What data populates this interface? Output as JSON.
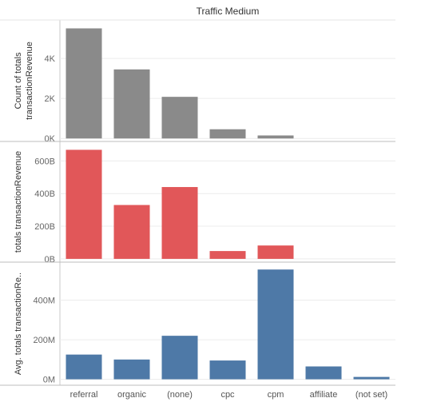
{
  "chart_data": {
    "type": "bar",
    "title": "Traffic Medium",
    "categories": [
      "referral",
      "organic",
      "(none)",
      "cpc",
      "cpm",
      "affiliate",
      "(not set)"
    ],
    "panels": [
      {
        "ylabel_lines": [
          "Count of totals",
          "transactionRevenue"
        ],
        "ticks": [
          0,
          2000,
          4000
        ],
        "tick_labels": [
          "0K",
          "2K",
          "4K"
        ],
        "ylim": [
          -150,
          5600
        ],
        "values": [
          5500,
          3450,
          2080,
          460,
          150,
          null,
          null
        ]
      },
      {
        "ylabel_lines": [
          "totals transactionRevenue"
        ],
        "ticks": [
          0,
          200,
          400,
          600
        ],
        "tick_labels": [
          "0B",
          "200B",
          "400B",
          "600B"
        ],
        "ylim": [
          -20,
          680
        ],
        "values": [
          668,
          330,
          440,
          48,
          82,
          null,
          null
        ]
      },
      {
        "ylabel_lines": [
          "Avg. totals transactionRe.."
        ],
        "ticks": [
          0,
          200,
          400
        ],
        "tick_labels": [
          "0M",
          "200M",
          "400M"
        ],
        "ylim": [
          -30,
          560
        ],
        "values": [
          125,
          100,
          220,
          95,
          555,
          65,
          12
        ]
      }
    ],
    "colors": [
      "#8a8a8a",
      "#e15759",
      "#4e79a7"
    ],
    "grid": true
  }
}
